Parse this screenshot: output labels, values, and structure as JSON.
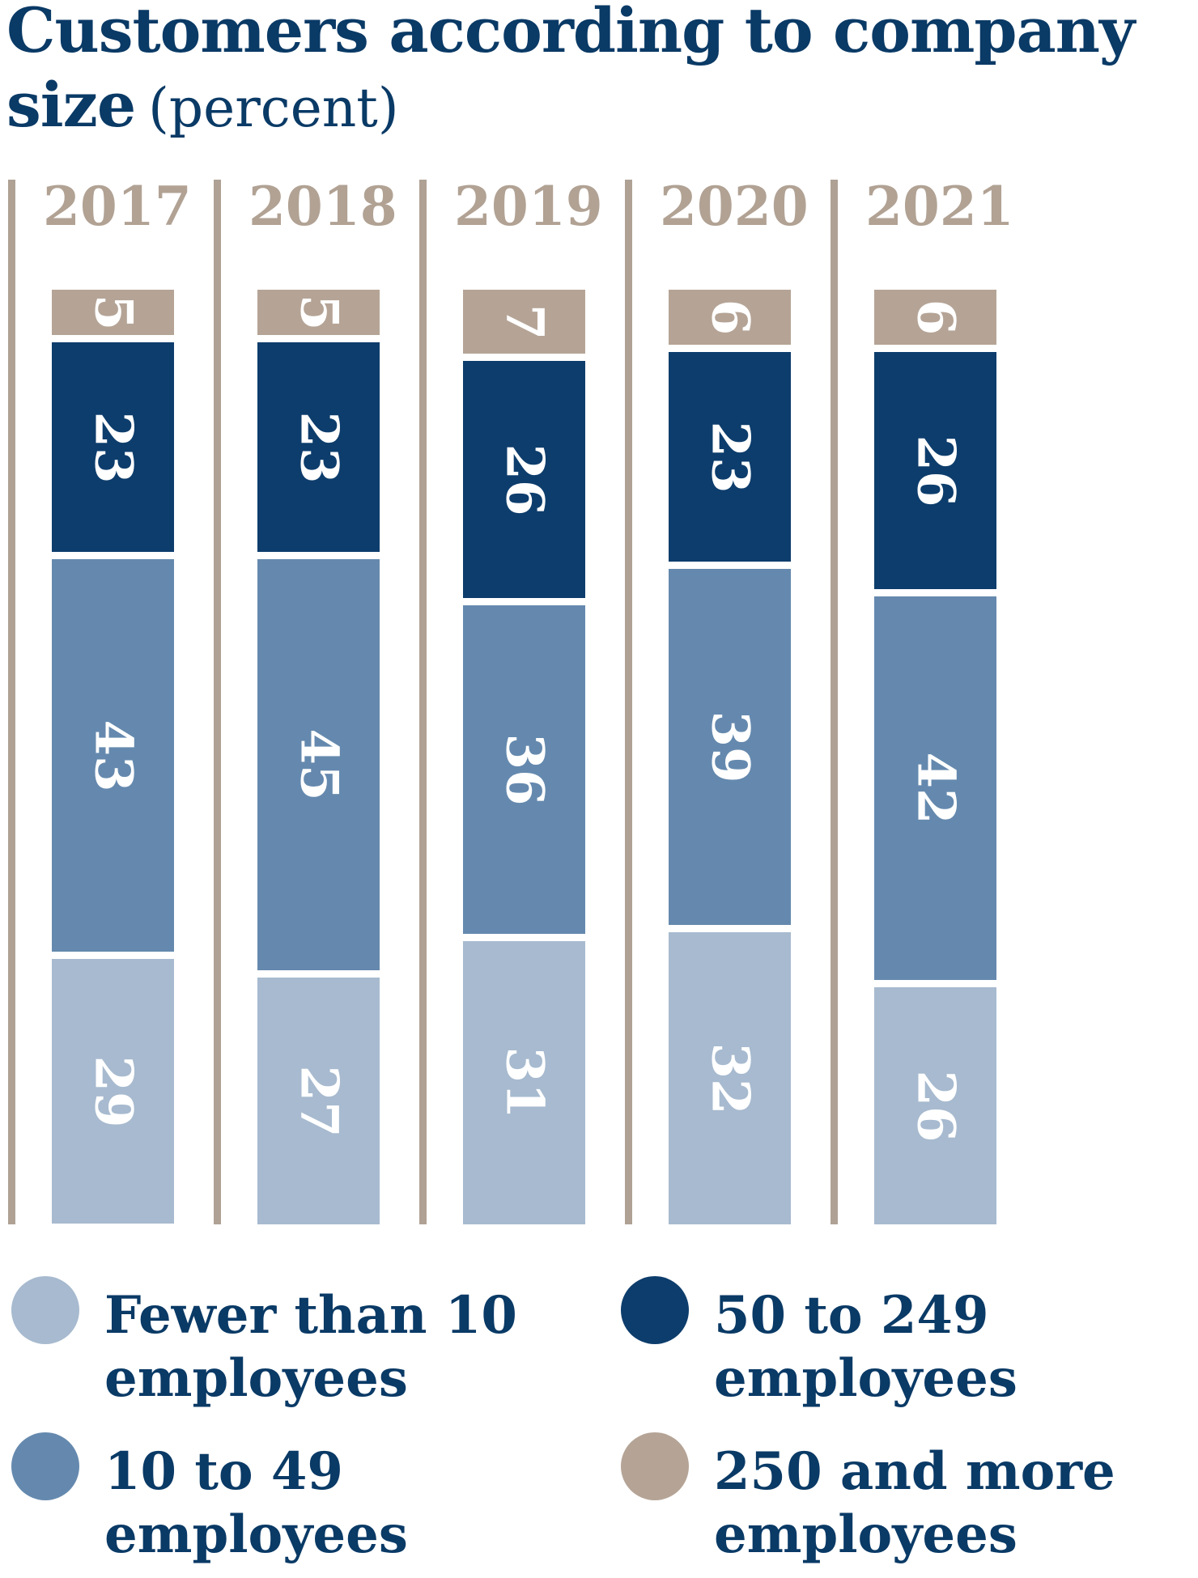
{
  "title": {
    "line1": "Customers according to company",
    "line2_bold": "size",
    "line2_note": "(percent)"
  },
  "colors": {
    "light": "#a7bacf",
    "medium": "#6589ae",
    "dark": "#0d3d6c",
    "tan": "#b5a496",
    "divider": "#afa194",
    "year_label": "#b1a294",
    "title_text": "#0a3a66",
    "value_label": "#ffffff",
    "background": "#ffffff"
  },
  "chart_data": {
    "type": "bar",
    "stacked": true,
    "unit": "percent",
    "title": "Customers according to company size (percent)",
    "categories": [
      "2017",
      "2018",
      "2019",
      "2020",
      "2021"
    ],
    "series": [
      {
        "name": "Fewer than 10 employees",
        "color_key": "light",
        "values": [
          29,
          27,
          31,
          32,
          26
        ]
      },
      {
        "name": "10 to 49 employees",
        "color_key": "medium",
        "values": [
          43,
          45,
          36,
          39,
          42
        ]
      },
      {
        "name": "50 to 249 employees",
        "color_key": "dark",
        "values": [
          23,
          23,
          26,
          23,
          26
        ]
      },
      {
        "name": "250 and more employees",
        "color_key": "tan",
        "values": [
          5,
          5,
          7,
          6,
          6
        ]
      }
    ],
    "stack_order_top_to_bottom": [
      "250 and more employees",
      "50 to 249 employees",
      "10 to 49 employees",
      "Fewer than 10 employees"
    ],
    "value_labels_shown": true,
    "value_label_rotation_deg": 90,
    "axis_shown": false,
    "total_per_bar": 100
  },
  "legend": [
    {
      "label_line1": "Fewer than 10",
      "label_line2": "employees",
      "color_key": "light"
    },
    {
      "label_line1": "10 to 49",
      "label_line2": "employees",
      "color_key": "medium"
    },
    {
      "label_line1": "50 to 249",
      "label_line2": "employees",
      "color_key": "dark"
    },
    {
      "label_line1": "250 and more",
      "label_line2": "employees",
      "color_key": "tan"
    }
  ]
}
